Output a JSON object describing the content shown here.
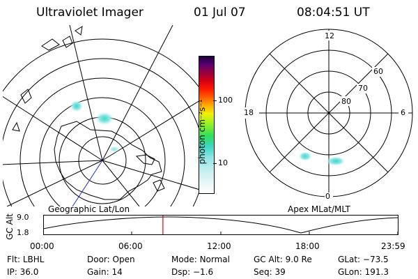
{
  "header": {
    "title": "Ultraviolet Imager",
    "date": "01 Jul 07",
    "time": "08:04:51 UT"
  },
  "left_map": {
    "label": "Geographic Lat/Lon"
  },
  "right_map": {
    "label": "Apex MLat/MLT",
    "mlt_labels": {
      "top": "12",
      "left": "18",
      "right": "6",
      "bottom": "0"
    },
    "lat_labels": [
      "60",
      "70",
      "80"
    ]
  },
  "colorbar": {
    "unit": "photon cm⁻²s⁻¹",
    "ticks": [
      "100",
      "10"
    ],
    "colors": [
      "#ffffff",
      "#e6f6f6",
      "#c8eeee",
      "#8fe6e6",
      "#3fd6c6",
      "#2fe05a",
      "#8ef02a",
      "#f2f000",
      "#ffb000",
      "#ff6000",
      "#ff1a00",
      "#d40010",
      "#9a0040",
      "#5a0070",
      "#200040"
    ]
  },
  "altitude_plot": {
    "ylabel": "GC Alt",
    "yticks": [
      "9.0",
      "1.8"
    ],
    "xticks": [
      "00:00",
      "06:00",
      "12:00",
      "18:00",
      "23:59"
    ],
    "current_time_hours": 8.08
  },
  "info": {
    "row1": [
      {
        "key": "Flt:",
        "val": "LBHL"
      },
      {
        "key": "Door:",
        "val": "Open"
      },
      {
        "key": "Mode:",
        "val": "Normal"
      },
      {
        "key": "GC Alt:",
        "val": "9.0 Re"
      },
      {
        "key": "GLat:",
        "val": "−73.5"
      }
    ],
    "row2": [
      {
        "key": "IP:",
        "val": "36.0"
      },
      {
        "key": "Gain:",
        "val": "14"
      },
      {
        "key": "Dsp:",
        "val": "−1.6"
      },
      {
        "key": "Seq:",
        "val": "39"
      },
      {
        "key": "GLon:",
        "val": "191.3"
      }
    ]
  }
}
